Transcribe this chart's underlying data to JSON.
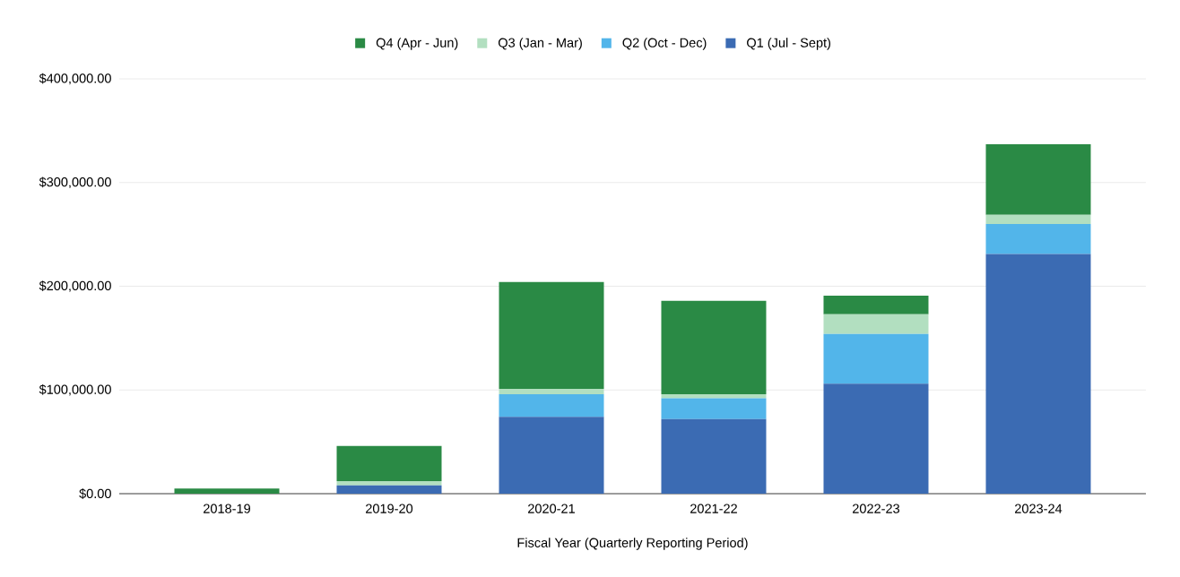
{
  "chart_data": {
    "type": "bar",
    "stacked": true,
    "categories": [
      "2018-19",
      "2019-20",
      "2020-21",
      "2021-22",
      "2022-23",
      "2023-24"
    ],
    "xlabel": "Fiscal Year (Quarterly Reporting Period)",
    "series": [
      {
        "name": "Q1 (Jul - Sept)",
        "color": "#3b6bb3",
        "values": [
          0,
          8000,
          74000,
          72000,
          106000,
          231000
        ]
      },
      {
        "name": "Q2 (Oct - Dec)",
        "color": "#52b5ea",
        "values": [
          0,
          0,
          22000,
          20000,
          48000,
          29000
        ]
      },
      {
        "name": "Q3 (Jan - Mar)",
        "color": "#b2dfc0",
        "values": [
          0,
          4000,
          5000,
          4000,
          19000,
          9000
        ]
      },
      {
        "name": "Q4 (Apr - Jun)",
        "color": "#2a8a45",
        "values": [
          5000,
          34000,
          103000,
          90000,
          18000,
          68000
        ]
      }
    ],
    "ylim": [
      0,
      400000
    ],
    "yticks": [
      {
        "value": 0,
        "label": "$0.00"
      },
      {
        "value": 100000,
        "label": "$100,000.00"
      },
      {
        "value": 200000,
        "label": "$200,000.00"
      },
      {
        "value": 300000,
        "label": "$300,000.00"
      },
      {
        "value": 400000,
        "label": "$400,000.00"
      }
    ],
    "grid": "y",
    "legend": "top"
  }
}
